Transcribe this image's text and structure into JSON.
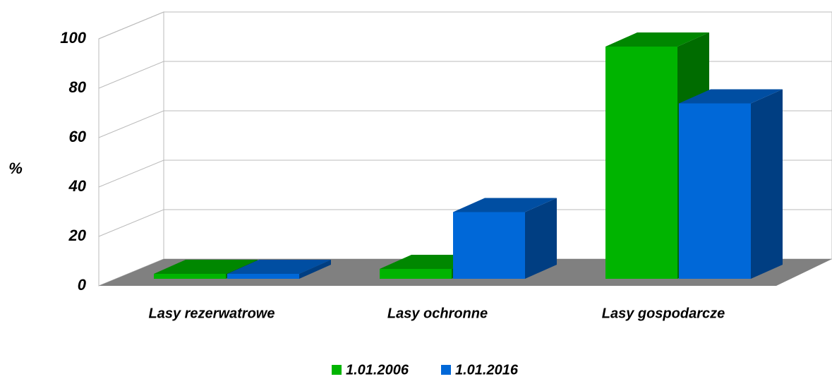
{
  "chart_data": {
    "type": "bar3d",
    "ylabel": "%",
    "categories": [
      "Lasy rezerwatrowe",
      "Lasy ochronne",
      "Lasy gospodarcze"
    ],
    "series": [
      {
        "name": "1.01.2006",
        "color": "#00b400",
        "values": [
          2,
          4,
          94
        ]
      },
      {
        "name": "1.01.2016",
        "color": "#0068d8",
        "values": [
          2,
          27,
          71
        ]
      }
    ],
    "ylim": [
      0,
      100
    ],
    "yticks": [
      0,
      20,
      40,
      60,
      80,
      100
    ],
    "grid": true,
    "legend": "bottom"
  }
}
